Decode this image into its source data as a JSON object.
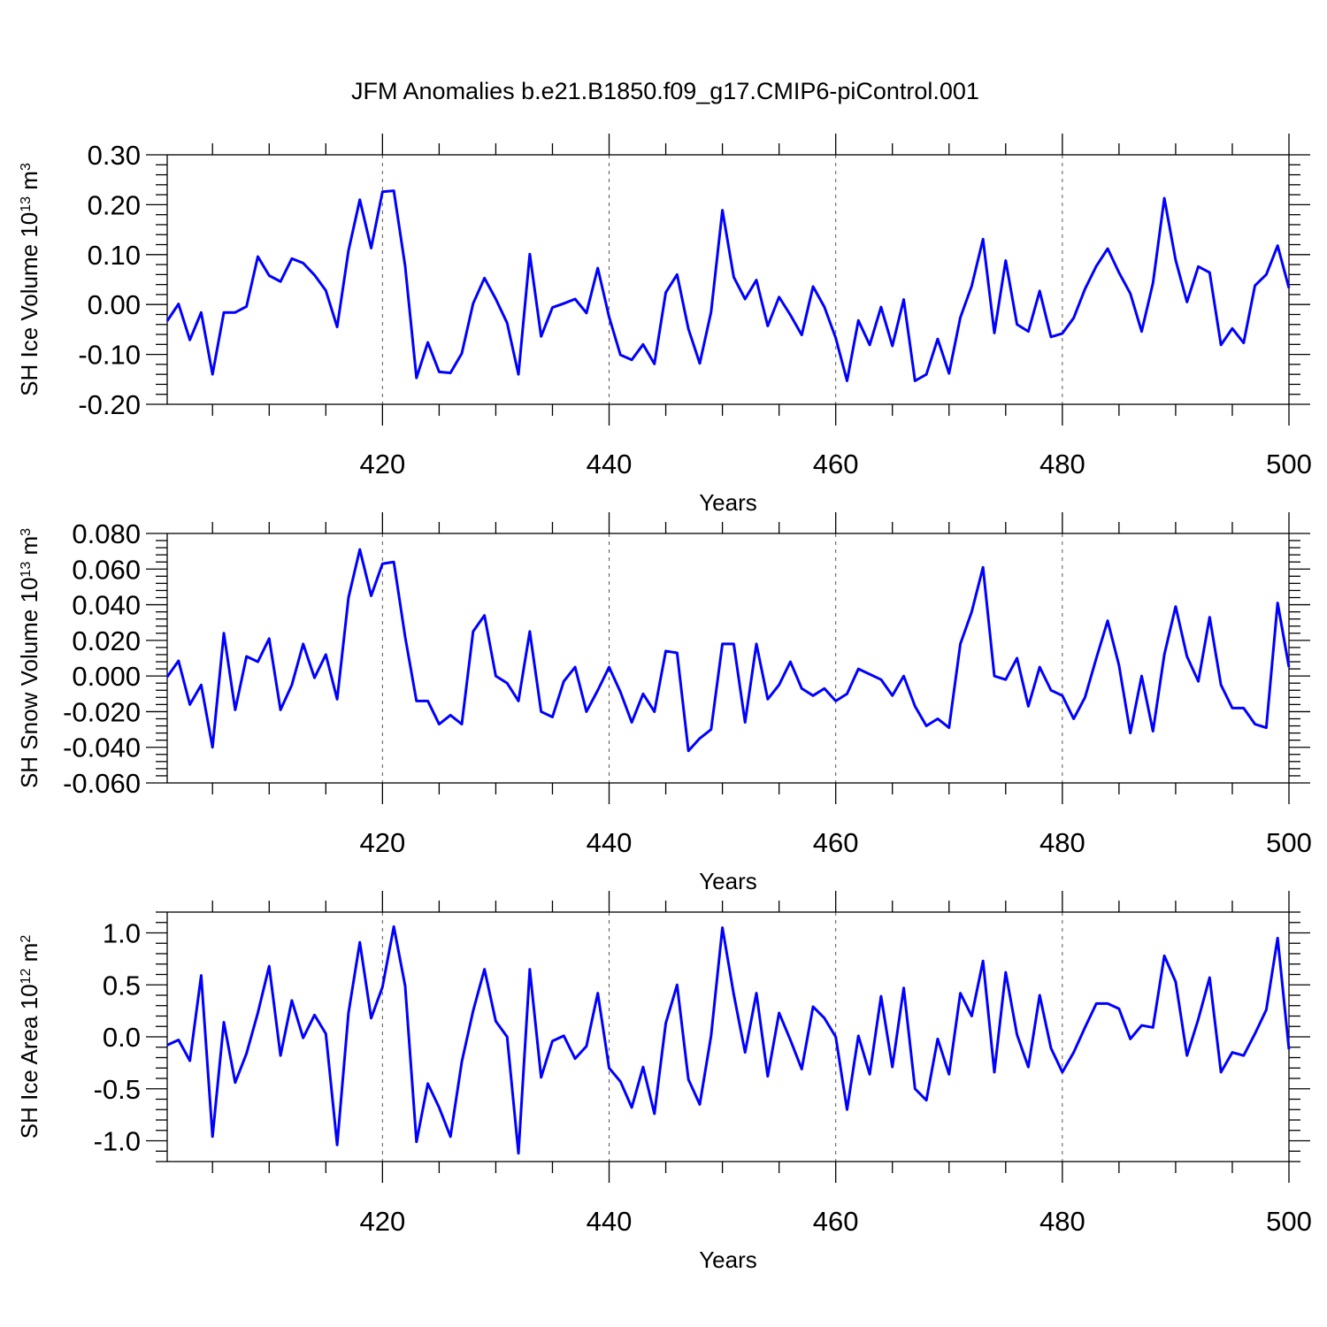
{
  "figure": {
    "title": "JFM Anomalies b.e21.B1850.f09_g17.CMIP6-piControl.001"
  },
  "chart_data": [
    {
      "type": "line",
      "title": "JFM Anomalies b.e21.B1850.f09_g17.CMIP6-piControl.001",
      "xlabel": "Years",
      "ylabel": "SH Ice Volume 10",
      "ylabel_exponent": "13",
      "ylabel_unit": "m",
      "ylabel_unit_exponent": "3",
      "xlim": [
        401,
        500
      ],
      "ylim": [
        -0.2,
        0.3
      ],
      "xticks": [
        420,
        440,
        460,
        480,
        500
      ],
      "xtick_labels": [
        "420",
        "440",
        "460",
        "480",
        "500"
      ],
      "yticks": [
        -0.2,
        -0.1,
        0.0,
        0.1,
        0.2,
        0.3
      ],
      "ytick_labels": [
        "-0.20",
        "-0.10",
        "0.00",
        "0.10",
        "0.20",
        "0.30"
      ],
      "grid": "x-dashed",
      "color": "#0000ff",
      "series": [
        {
          "name": "SH Ice Volume",
          "x_start": 401,
          "values": [
            -0.033,
            0.001,
            -0.071,
            -0.016,
            -0.14,
            -0.016,
            -0.016,
            -0.004,
            0.096,
            0.058,
            0.046,
            0.092,
            0.083,
            0.059,
            0.028,
            -0.045,
            0.108,
            0.21,
            0.113,
            0.226,
            0.228,
            0.077,
            -0.147,
            -0.076,
            -0.135,
            -0.137,
            -0.098,
            0.002,
            0.053,
            0.011,
            -0.037,
            -0.14,
            0.101,
            -0.064,
            -0.006,
            0.002,
            0.011,
            -0.017,
            0.073,
            -0.025,
            -0.101,
            -0.111,
            -0.08,
            -0.119,
            0.024,
            0.06,
            -0.049,
            -0.118,
            -0.015,
            0.189,
            0.055,
            0.011,
            0.049,
            -0.043,
            0.015,
            -0.021,
            -0.061,
            0.036,
            -0.005,
            -0.067,
            -0.153,
            -0.032,
            -0.081,
            -0.005,
            -0.083,
            0.01,
            -0.153,
            -0.14,
            -0.069,
            -0.138,
            -0.026,
            0.037,
            0.131,
            -0.057,
            0.088,
            -0.04,
            -0.054,
            0.027,
            -0.065,
            -0.058,
            -0.027,
            0.031,
            0.077,
            0.112,
            0.064,
            0.022,
            -0.054,
            0.043,
            0.213,
            0.089,
            0.005,
            0.076,
            0.064,
            -0.081,
            -0.048,
            -0.077,
            0.038,
            0.06,
            0.118,
            0.033
          ]
        }
      ]
    },
    {
      "type": "line",
      "xlabel": "Years",
      "ylabel": "SH Snow Volume 10",
      "ylabel_exponent": "13",
      "ylabel_unit": "m",
      "ylabel_unit_exponent": "3",
      "xlim": [
        401,
        500
      ],
      "ylim": [
        -0.06,
        0.08
      ],
      "xticks": [
        420,
        440,
        460,
        480,
        500
      ],
      "xtick_labels": [
        "420",
        "440",
        "460",
        "480",
        "500"
      ],
      "yticks": [
        -0.06,
        -0.04,
        -0.02,
        0.0,
        0.02,
        0.04,
        0.06,
        0.08
      ],
      "ytick_labels": [
        "-0.060",
        "-0.040",
        "-0.020",
        "0.000",
        "0.020",
        "0.040",
        "0.060",
        "0.080"
      ],
      "grid": "x-dashed",
      "color": "#0000ff",
      "series": [
        {
          "name": "SH Snow Volume",
          "x_start": 401,
          "values": [
            -0.0005,
            0.0085,
            -0.016,
            -0.005,
            -0.04,
            0.024,
            -0.019,
            0.011,
            0.008,
            0.021,
            -0.019,
            -0.005,
            0.018,
            -0.001,
            0.012,
            -0.013,
            0.044,
            0.071,
            0.045,
            0.063,
            0.064,
            0.022,
            -0.014,
            -0.014,
            -0.027,
            -0.022,
            -0.027,
            0.025,
            0.034,
            0.0,
            -0.004,
            -0.014,
            0.025,
            -0.02,
            -0.023,
            -0.003,
            0.005,
            -0.02,
            -0.008,
            0.005,
            -0.009,
            -0.026,
            -0.01,
            -0.02,
            0.014,
            0.013,
            -0.042,
            -0.035,
            -0.03,
            0.018,
            0.018,
            -0.026,
            0.018,
            -0.013,
            -0.005,
            0.008,
            -0.007,
            -0.011,
            -0.007,
            -0.014,
            -0.01,
            0.004,
            0.001,
            -0.002,
            -0.011,
            0.0,
            -0.017,
            -0.028,
            -0.024,
            -0.029,
            0.018,
            0.036,
            0.061,
            0.0,
            -0.002,
            0.01,
            -0.017,
            0.005,
            -0.008,
            -0.011,
            -0.024,
            -0.012,
            0.01,
            0.031,
            0.006,
            -0.032,
            0.0,
            -0.031,
            0.012,
            0.039,
            0.011,
            -0.003,
            0.033,
            -0.005,
            -0.018,
            -0.018,
            -0.027,
            -0.029,
            0.041,
            0.005
          ]
        }
      ]
    },
    {
      "type": "line",
      "xlabel": "Years",
      "ylabel": "SH Ice Area 10",
      "ylabel_exponent": "12",
      "ylabel_unit": "m",
      "ylabel_unit_exponent": "2",
      "xlim": [
        401,
        500
      ],
      "ylim": [
        -1.2,
        1.2
      ],
      "xticks": [
        420,
        440,
        460,
        480,
        500
      ],
      "xtick_labels": [
        "420",
        "440",
        "460",
        "480",
        "500"
      ],
      "yticks": [
        -1.0,
        -0.5,
        0.0,
        0.5,
        1.0
      ],
      "ytick_labels": [
        "-1.0",
        "-0.5",
        "0.0",
        "0.5",
        "1.0"
      ],
      "grid": "x-dashed",
      "color": "#0000ff",
      "series": [
        {
          "name": "SH Ice Area",
          "x_start": 401,
          "values": [
            -0.08,
            -0.03,
            -0.23,
            0.59,
            -0.96,
            0.14,
            -0.44,
            -0.16,
            0.23,
            0.68,
            -0.18,
            0.35,
            -0.01,
            0.21,
            0.03,
            -1.04,
            0.23,
            0.91,
            0.18,
            0.48,
            1.06,
            0.49,
            -1.01,
            -0.45,
            -0.68,
            -0.96,
            -0.24,
            0.25,
            0.65,
            0.15,
            0.0,
            -1.12,
            0.65,
            -0.39,
            -0.04,
            0.01,
            -0.21,
            -0.09,
            0.42,
            -0.3,
            -0.43,
            -0.68,
            -0.29,
            -0.74,
            0.13,
            0.5,
            -0.41,
            -0.65,
            0.01,
            1.05,
            0.41,
            -0.15,
            0.42,
            -0.38,
            0.23,
            -0.03,
            -0.31,
            0.29,
            0.18,
            0.0,
            -0.7,
            0.01,
            -0.36,
            0.39,
            -0.29,
            0.47,
            -0.5,
            -0.61,
            -0.02,
            -0.36,
            0.42,
            0.2,
            0.73,
            -0.34,
            0.62,
            0.02,
            -0.29,
            0.4,
            -0.11,
            -0.34,
            -0.15,
            0.09,
            0.32,
            0.32,
            0.27,
            -0.02,
            0.11,
            0.09,
            0.78,
            0.53,
            -0.18,
            0.17,
            0.57,
            -0.34,
            -0.15,
            -0.18,
            0.03,
            0.26,
            0.95,
            -0.12
          ]
        }
      ]
    }
  ]
}
